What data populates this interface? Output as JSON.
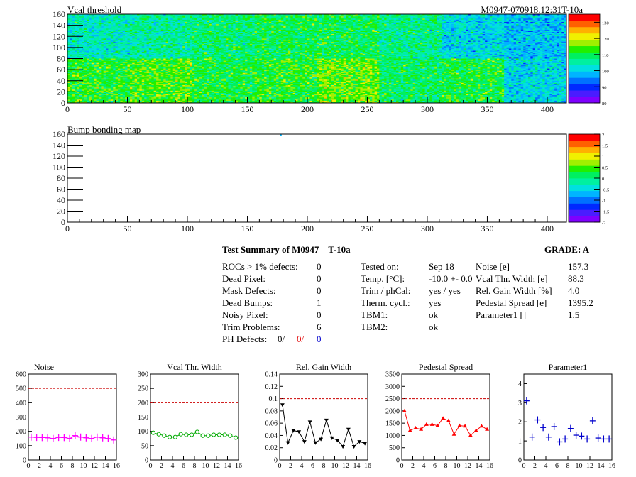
{
  "header": {
    "left_title": "Vcal threshold",
    "right_title": "M0947-070918.12:31T-10a"
  },
  "colors": {
    "palette": [
      "#7f00ff",
      "#4a1cff",
      "#0028ff",
      "#0070ff",
      "#00b4ff",
      "#00e0e0",
      "#00f0a0",
      "#00f060",
      "#20f000",
      "#a0f000",
      "#f0f000",
      "#ffb000",
      "#ff6000",
      "#ff0000"
    ],
    "noise": "#ff00ff",
    "vcal": "#00aa00",
    "gain": "#000000",
    "pedestal": "#ff0000",
    "param": "#0000cc",
    "reference_line": "#cc0000"
  },
  "chart_data": [
    {
      "name": "Vcal threshold",
      "type": "heatmap",
      "title": "Vcal threshold",
      "xlim": [
        0,
        416
      ],
      "ylim": [
        0,
        160
      ],
      "xticks": [
        0,
        50,
        100,
        150,
        200,
        250,
        300,
        350,
        400
      ],
      "yticks": [
        0,
        20,
        40,
        60,
        80,
        100,
        120,
        140,
        160
      ],
      "zlim": [
        80,
        135
      ],
      "zticks": [
        80,
        90,
        100,
        110,
        120,
        130
      ],
      "blocks_x": 8,
      "blocks_y": 2,
      "block_means": [
        [
          104,
          106,
          108,
          110,
          110,
          107,
          101,
          99
        ],
        [
          112,
          114,
          111,
          112,
          115,
          109,
          111,
          101
        ]
      ]
    },
    {
      "name": "Bump bonding map",
      "type": "heatmap",
      "title": "Bump bonding map",
      "xlim": [
        0,
        416
      ],
      "ylim": [
        0,
        160
      ],
      "xticks": [
        0,
        50,
        100,
        150,
        200,
        250,
        300,
        350,
        400
      ],
      "yticks": [
        0,
        20,
        40,
        60,
        80,
        100,
        120,
        140,
        160
      ],
      "zlim": [
        -2,
        2
      ],
      "zticks": [
        -2,
        -1.5,
        -1,
        -0.5,
        0,
        0.5,
        1,
        1.5,
        2
      ],
      "hits": [
        [
          178,
          158
        ]
      ]
    },
    {
      "name": "Noise",
      "type": "scatter",
      "title": "Noise",
      "xlim": [
        0,
        16
      ],
      "ylim": [
        0,
        600
      ],
      "xticks": [
        0,
        2,
        4,
        6,
        8,
        10,
        12,
        14,
        16
      ],
      "yticks": [
        0,
        100,
        200,
        300,
        400,
        500,
        600
      ],
      "reference": 500,
      "marker": "plus-connected",
      "x": [
        0,
        1,
        2,
        3,
        4,
        5,
        6,
        7,
        8,
        9,
        10,
        11,
        12,
        13,
        14,
        15
      ],
      "values": [
        160,
        158,
        157,
        155,
        150,
        158,
        157,
        150,
        170,
        160,
        155,
        150,
        160,
        155,
        150,
        140
      ]
    },
    {
      "name": "Vcal Thr. Width",
      "type": "line",
      "title": "Vcal Thr. Width",
      "xlim": [
        0,
        16
      ],
      "ylim": [
        0,
        300
      ],
      "xticks": [
        0,
        2,
        4,
        6,
        8,
        10,
        12,
        14,
        16
      ],
      "yticks": [
        0,
        50,
        100,
        150,
        200,
        250,
        300
      ],
      "reference": 200,
      "marker": "circle",
      "x": [
        0,
        1,
        2,
        3,
        4,
        5,
        6,
        7,
        8,
        9,
        10,
        11,
        12,
        13,
        14,
        15
      ],
      "values": [
        95,
        90,
        85,
        80,
        80,
        90,
        88,
        88,
        98,
        85,
        85,
        88,
        88,
        88,
        85,
        78
      ]
    },
    {
      "name": "Rel. Gain Width",
      "type": "line",
      "title": "Rel. Gain Width",
      "xlim": [
        0,
        16
      ],
      "ylim": [
        0,
        0.14
      ],
      "xticks": [
        0,
        2,
        4,
        6,
        8,
        10,
        12,
        14,
        16
      ],
      "yticks": [
        0,
        0.02,
        0.04,
        0.06,
        0.08,
        0.1,
        0.12,
        0.14
      ],
      "reference": 0.1,
      "marker": "triangle-down",
      "x": [
        0,
        1,
        2,
        3,
        4,
        5,
        6,
        7,
        8,
        9,
        10,
        11,
        12,
        13,
        14,
        15
      ],
      "values": [
        0.09,
        0.028,
        0.048,
        0.046,
        0.03,
        0.062,
        0.028,
        0.034,
        0.065,
        0.036,
        0.032,
        0.022,
        0.05,
        0.022,
        0.03,
        0.027
      ]
    },
    {
      "name": "Pedestal Spread",
      "type": "line",
      "title": "Pedestal Spread",
      "xlim": [
        0,
        16
      ],
      "ylim": [
        0,
        3500
      ],
      "xticks": [
        0,
        2,
        4,
        6,
        8,
        10,
        12,
        14,
        16
      ],
      "yticks": [
        0,
        500,
        1000,
        1500,
        2000,
        2500,
        3000,
        3500
      ],
      "reference": 2500,
      "marker": "triangle-up",
      "x": [
        0,
        1,
        2,
        3,
        4,
        5,
        6,
        7,
        8,
        9,
        10,
        11,
        12,
        13,
        14,
        15
      ],
      "values": [
        2000,
        1200,
        1300,
        1250,
        1450,
        1450,
        1400,
        1700,
        1600,
        1050,
        1400,
        1380,
        1000,
        1200,
        1380,
        1250
      ]
    },
    {
      "name": "Parameter1",
      "type": "scatter",
      "title": "Parameter1",
      "xlim": [
        0,
        16
      ],
      "ylim": [
        0,
        4.5
      ],
      "xticks": [
        0,
        2,
        4,
        6,
        8,
        10,
        12,
        14,
        16
      ],
      "yticks": [
        0,
        1,
        2,
        3,
        4
      ],
      "marker": "plus",
      "x": [
        0,
        1,
        2,
        3,
        4,
        5,
        6,
        7,
        8,
        9,
        10,
        11,
        12,
        13,
        14,
        15
      ],
      "values": [
        3.1,
        1.2,
        2.1,
        1.7,
        1.2,
        1.75,
        0.95,
        1.1,
        1.65,
        1.3,
        1.25,
        1.1,
        2.05,
        1.15,
        1.1,
        1.1
      ]
    }
  ],
  "summary": {
    "title": "Test Summary of M0947",
    "subtitle": "T-10a",
    "grade_label": "GRADE:  A",
    "left_rows": [
      {
        "label": "ROCs > 1% defects:",
        "value": "0"
      },
      {
        "label": "Dead Pixel:",
        "value": "0"
      },
      {
        "label": "Mask Defects:",
        "value": "0"
      },
      {
        "label": "Dead Bumps:",
        "value": "1"
      },
      {
        "label": "Noisy Pixel:",
        "value": "0"
      },
      {
        "label": "Trim Problems:",
        "value": "6"
      }
    ],
    "ph_defects": {
      "label": "PH Defects:",
      "v1": "0/",
      "v2": "0/",
      "v3": "0"
    },
    "mid_rows": [
      {
        "label": "Tested on:",
        "value": "Sep 18"
      },
      {
        "label": "Temp. [°C]:",
        "value": "-10.0 +- 0.0"
      },
      {
        "label": "Trim / phCal:",
        "value": "yes / yes"
      },
      {
        "label": "Therm. cycl.:",
        "value": "yes"
      },
      {
        "label": "TBM1:",
        "value": "ok"
      },
      {
        "label": "TBM2:",
        "value": "ok"
      }
    ],
    "right_rows": [
      {
        "label": "Noise [e]",
        "value": "157.3"
      },
      {
        "label": "Vcal Thr. Width [e]",
        "value": "88.3"
      },
      {
        "label": "Rel. Gain Width [%]",
        "value": "4.0"
      },
      {
        "label": "Pedestal Spread [e]",
        "value": "1395.2"
      },
      {
        "label": "Parameter1 []",
        "value": "1.5"
      }
    ]
  }
}
